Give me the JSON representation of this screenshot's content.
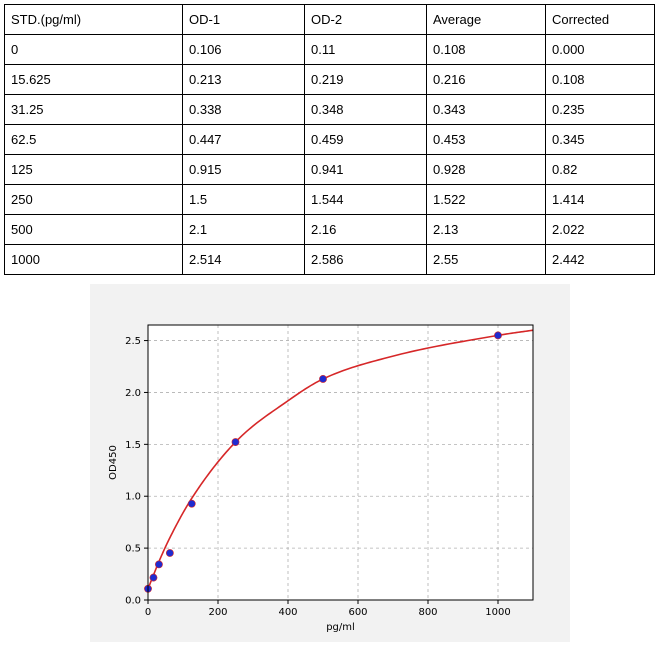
{
  "table": {
    "headers": [
      "STD.(pg/ml)",
      "OD-1",
      "OD-2",
      "Average",
      "Corrected"
    ],
    "rows": [
      [
        "0",
        "0.106",
        "0.11",
        "0.108",
        "0.000"
      ],
      [
        "15.625",
        "0.213",
        "0.219",
        "0.216",
        "0.108"
      ],
      [
        "31.25",
        "0.338",
        "0.348",
        "0.343",
        "0.235"
      ],
      [
        "62.5",
        "0.447",
        "0.459",
        "0.453",
        "0.345"
      ],
      [
        "125",
        "0.915",
        "0.941",
        "0.928",
        "0.82"
      ],
      [
        "250",
        "1.5",
        "1.544",
        "1.522",
        "1.414"
      ],
      [
        "500",
        "2.1",
        "2.16",
        "2.13",
        "2.022"
      ],
      [
        "1000",
        "2.514",
        "2.586",
        "2.55",
        "2.442"
      ]
    ]
  },
  "chart_data": {
    "type": "scatter",
    "title": "",
    "xlabel": "pg/ml",
    "ylabel": "OD450",
    "xlim": [
      0,
      1100
    ],
    "ylim": [
      0,
      2.65
    ],
    "xticks": [
      0,
      200,
      400,
      600,
      800,
      1000
    ],
    "xtick_labels": [
      "0",
      "200",
      "400",
      "600",
      "800",
      "1000"
    ],
    "yticks": [
      0,
      0.5,
      1.0,
      1.5,
      2.0,
      2.5
    ],
    "ytick_labels": [
      "0.0",
      "0.5",
      "1.0",
      "1.5",
      "2.0",
      "2.5"
    ],
    "grid": true,
    "series": [
      {
        "kind": "points",
        "x": [
          0,
          15.625,
          31.25,
          62.5,
          125,
          250,
          500,
          1000
        ],
        "y": [
          0.108,
          0.216,
          0.343,
          0.453,
          0.928,
          1.522,
          2.13,
          2.55
        ]
      },
      {
        "kind": "fitted-curve",
        "x": [
          0,
          15.625,
          31.25,
          62.5,
          125,
          250,
          400,
          500,
          700,
          1000,
          1100
        ],
        "y": [
          0.108,
          0.24,
          0.37,
          0.6,
          0.98,
          1.522,
          1.92,
          2.13,
          2.35,
          2.55,
          2.6
        ]
      }
    ],
    "colors": {
      "points": "#1f2bd0",
      "curve": "#d62728",
      "grid": "#b0b0b0",
      "panel_background": "#f2f2f2"
    }
  }
}
